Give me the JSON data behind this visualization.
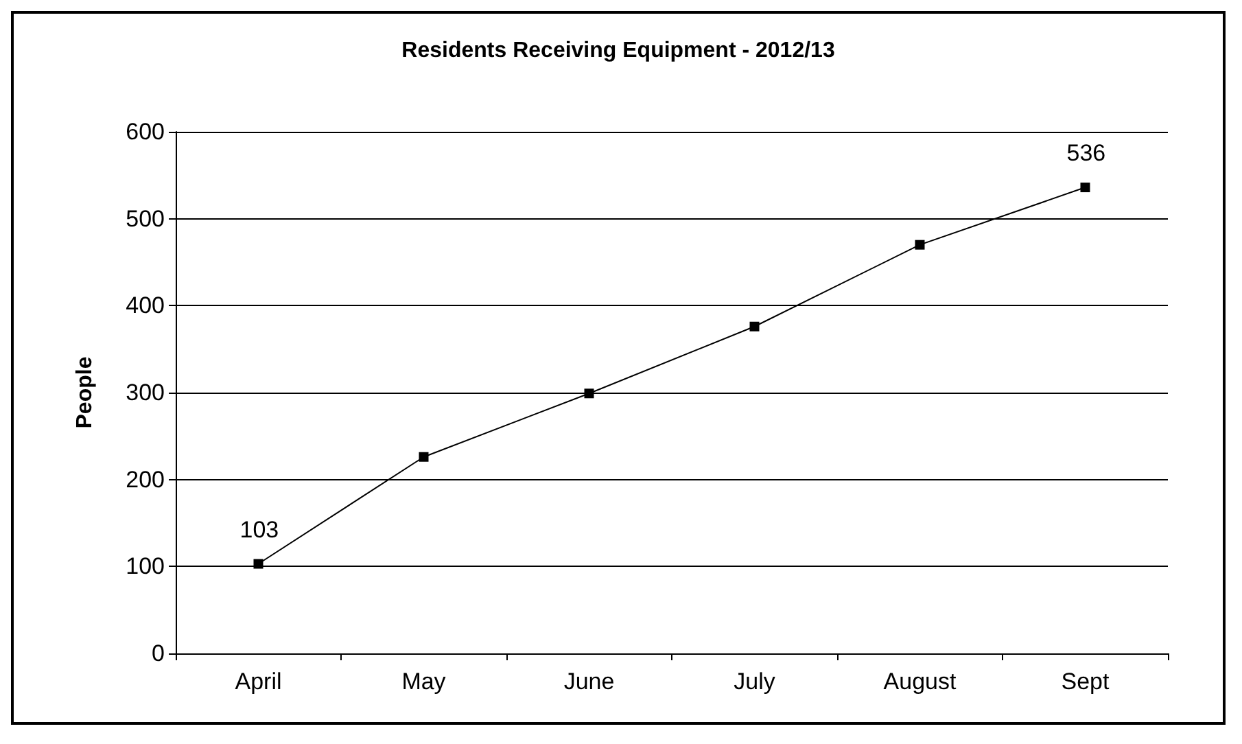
{
  "chart_data": {
    "type": "line",
    "title": "Residents Receiving Equipment - 2012/13",
    "ylabel": "People",
    "categories": [
      "April",
      "May",
      "June",
      "July",
      "August",
      "Sept"
    ],
    "series": [
      {
        "color": "#000000",
        "values": [
          103,
          226,
          299,
          376,
          470,
          536
        ],
        "value_labels": [
          "103",
          null,
          null,
          null,
          null,
          "536"
        ]
      }
    ],
    "ylim": [
      0,
      600
    ],
    "yticks": [
      0,
      100,
      200,
      300,
      400,
      500,
      600
    ],
    "grid": "y",
    "marker": "square",
    "line_style": "solid"
  }
}
